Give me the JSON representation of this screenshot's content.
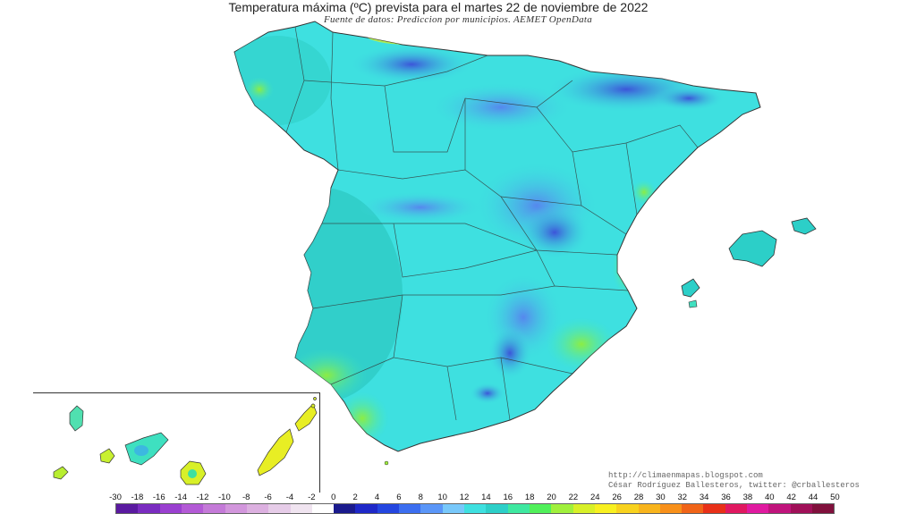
{
  "title": "Temperatura máxima (ºC) prevista para el martes 22 de noviembre de 2022",
  "subtitle": "Fuente de datos: Prediccion por municipios. AEMET OpenData",
  "credits": {
    "line1": "http://climaenmapas.blogspot.com",
    "line2": "César Rodríguez Ballesteros, twitter: @crballesteros"
  },
  "legend": {
    "labels": [
      "-30",
      "-18",
      "-16",
      "-14",
      "-12",
      "-10",
      "-8",
      "-6",
      "-4",
      "-2",
      "0",
      "2",
      "4",
      "6",
      "8",
      "10",
      "12",
      "14",
      "16",
      "18",
      "20",
      "22",
      "24",
      "26",
      "28",
      "30",
      "32",
      "34",
      "36",
      "38",
      "40",
      "42",
      "44",
      "50"
    ],
    "colors": [
      "#5a1aa0",
      "#7a2cc0",
      "#9a40d0",
      "#b35ad6",
      "#c47ad8",
      "#d296dc",
      "#dcb0e0",
      "#e6cce8",
      "#f0e4f0",
      "#ffffff",
      "#1a1a8c",
      "#1e28c8",
      "#2446e0",
      "#3c6ef0",
      "#5a96f8",
      "#78c8fa",
      "#3ee0e0",
      "#2ccfc8",
      "#3ee8a0",
      "#50f05a",
      "#a0f03c",
      "#d8f028",
      "#f8f020",
      "#f8d21e",
      "#f8b41c",
      "#f8901a",
      "#f06418",
      "#e83018",
      "#e01860",
      "#e01aa0",
      "#c0147c",
      "#a01058",
      "#80103c",
      "#600c28"
    ]
  },
  "map": {
    "regions": [
      "Península",
      "Islas Baleares",
      "Islas Canarias"
    ]
  }
}
